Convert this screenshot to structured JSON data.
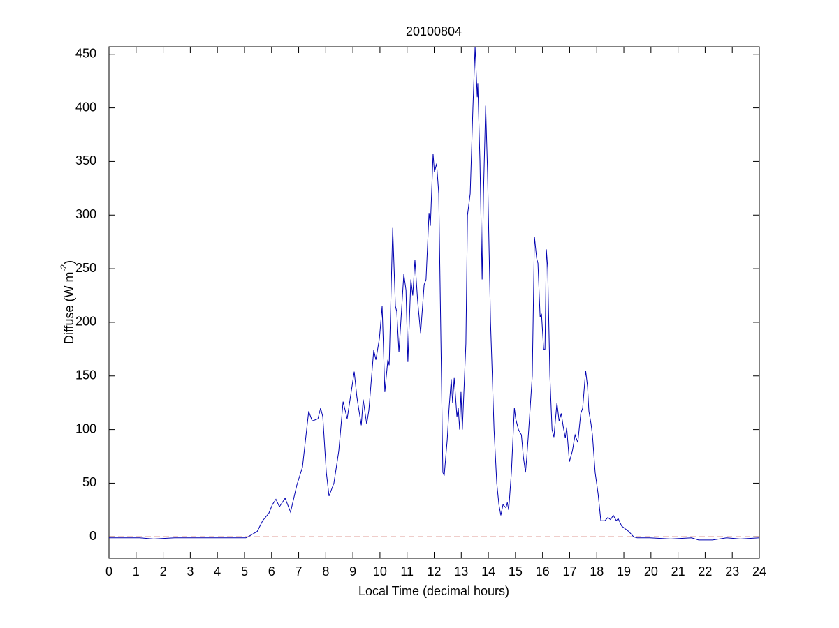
{
  "chart_data": {
    "type": "line",
    "title": "20100804",
    "xlabel": "Local Time (decimal hours)",
    "ylabel": {
      "text": "Diffuse (W m",
      "superscript": "-2",
      "suffix": ")"
    },
    "xlim": [
      0,
      24
    ],
    "xticks": [
      0,
      1,
      2,
      3,
      4,
      5,
      6,
      7,
      8,
      9,
      10,
      11,
      12,
      13,
      14,
      15,
      16,
      17,
      18,
      19,
      20,
      21,
      22,
      23,
      24
    ],
    "ylim": [
      -20,
      457
    ],
    "yticks": [
      0,
      50,
      100,
      150,
      200,
      250,
      300,
      350,
      400,
      450
    ],
    "grid": false,
    "reference_line": {
      "y": 0,
      "color": "#c0392b",
      "dash": true
    },
    "x": [
      0,
      1.13,
      1.65,
      2.42,
      4.87,
      5.05,
      5.13,
      5.47,
      5.67,
      5.9,
      6.03,
      6.16,
      6.29,
      6.5,
      6.7,
      6.93,
      7.14,
      7.37,
      7.5,
      7.71,
      7.81,
      7.89,
      8.02,
      8.12,
      8.3,
      8.48,
      8.64,
      8.79,
      9.05,
      9.15,
      9.31,
      9.38,
      9.51,
      9.59,
      9.77,
      9.85,
      9.98,
      10.08,
      10.18,
      10.29,
      10.34,
      10.47,
      10.57,
      10.62,
      10.7,
      10.88,
      10.96,
      11.03,
      11.14,
      11.21,
      11.29,
      11.39,
      11.5,
      11.63,
      11.7,
      11.81,
      11.86,
      11.96,
      12.01,
      12.09,
      12.17,
      12.25,
      12.32,
      12.37,
      12.48,
      12.55,
      12.63,
      12.68,
      12.74,
      12.84,
      12.89,
      12.94,
      12.99,
      13.04,
      13.17,
      13.23,
      13.33,
      13.43,
      13.51,
      13.59,
      13.61,
      13.69,
      13.77,
      13.82,
      13.9,
      13.97,
      14.08,
      14.21,
      14.31,
      14.39,
      14.46,
      14.54,
      14.65,
      14.7,
      14.75,
      14.85,
      14.96,
      15.01,
      15.11,
      15.22,
      15.29,
      15.37,
      15.42,
      15.49,
      15.62,
      15.7,
      15.78,
      15.83,
      15.91,
      15.96,
      16.04,
      16.09,
      16.14,
      16.19,
      16.27,
      16.35,
      16.42,
      16.53,
      16.61,
      16.69,
      16.76,
      16.84,
      16.89,
      16.99,
      17.1,
      17.2,
      17.3,
      17.41,
      17.48,
      17.59,
      17.66,
      17.71,
      17.79,
      17.84,
      17.94,
      18.05,
      18.15,
      18.3,
      18.41,
      18.51,
      18.61,
      18.72,
      18.79,
      18.92,
      19.18,
      19.36,
      19.49,
      19.95,
      20.73,
      21.5,
      21.76,
      22.27,
      22.79,
      23.3,
      24
    ],
    "series": [
      {
        "name": "Diffuse",
        "color": "#0000b0",
        "values": [
          -1,
          -1,
          -2,
          -1,
          -1,
          -1,
          0,
          5,
          15,
          22,
          30,
          35,
          28,
          36,
          23,
          48,
          65,
          117,
          108,
          110,
          120,
          112,
          60,
          38,
          50,
          80,
          126,
          110,
          154,
          130,
          104,
          128,
          105,
          118,
          174,
          165,
          185,
          215,
          135,
          165,
          160,
          288,
          215,
          210,
          172,
          245,
          230,
          163,
          240,
          225,
          258,
          220,
          190,
          235,
          240,
          302,
          290,
          357,
          340,
          348,
          320,
          180,
          60,
          57,
          90,
          120,
          147,
          125,
          148,
          112,
          120,
          100,
          135,
          100,
          180,
          300,
          320,
          400,
          457,
          410,
          423,
          350,
          240,
          320,
          402,
          340,
          200,
          100,
          50,
          30,
          20,
          30,
          27,
          32,
          25,
          60,
          120,
          110,
          100,
          95,
          75,
          60,
          75,
          100,
          150,
          280,
          260,
          255,
          205,
          208,
          175,
          175,
          268,
          250,
          150,
          100,
          93,
          125,
          108,
          115,
          103,
          92,
          102,
          70,
          80,
          95,
          88,
          115,
          120,
          155,
          140,
          117,
          105,
          95,
          60,
          40,
          15,
          15,
          18,
          16,
          20,
          15,
          17,
          10,
          5,
          0,
          -1,
          -1,
          -2,
          -1,
          -3,
          -3,
          -1,
          -2,
          -1
        ]
      }
    ]
  }
}
